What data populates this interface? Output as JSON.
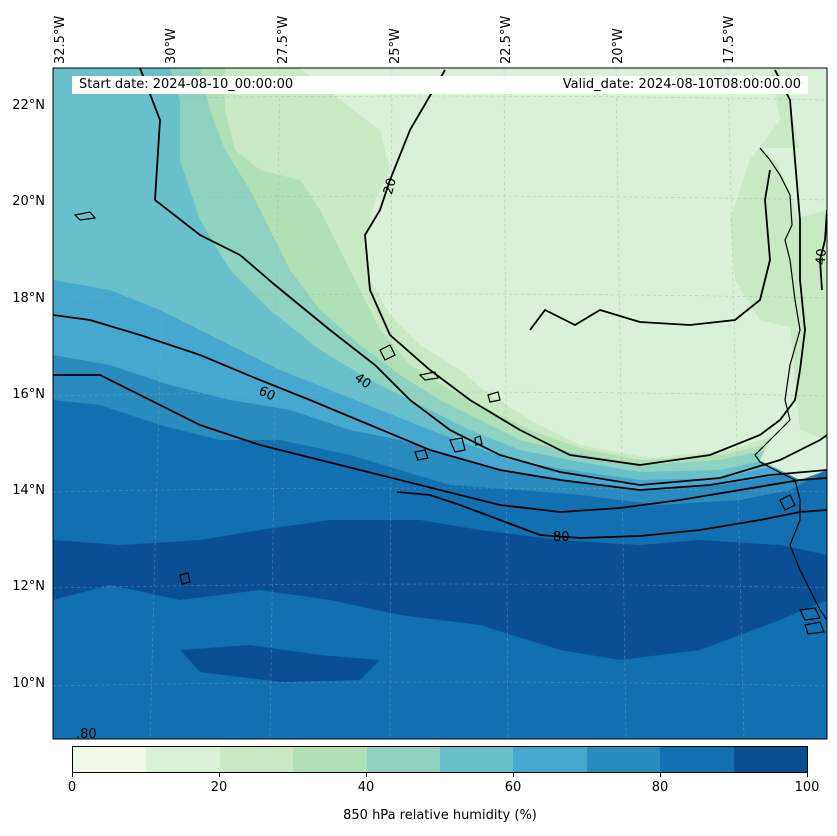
{
  "map": {
    "start_date": "Start date: 2024-08-10_00:00:00",
    "valid_date": "Valid_date: 2024-08-10T08:00:00.00",
    "lon_labels": [
      "32.5°W",
      "30°W",
      "27.5°W",
      "25°W",
      "22.5°W",
      "20°W",
      "17.5°W"
    ],
    "lat_labels": [
      "22°N",
      "20°N",
      "18°N",
      "16°N",
      "14°N",
      "12°N",
      "10°N"
    ],
    "contour_labels": [
      "20",
      "40",
      "60",
      "40",
      "80",
      ".80"
    ],
    "colorbar": {
      "label": "850 hPa relative humidity (%)",
      "ticks": [
        "0",
        "20",
        "40",
        "60",
        "80",
        "100"
      ],
      "colors": [
        "#f0f9e8",
        "#dbf0d8",
        "#c8e9c3",
        "#b0e0b5",
        "#8ed2c1",
        "#69c0ca",
        "#46a8cf",
        "#2a8bbf",
        "#1270b0",
        "#0a4f93"
      ]
    }
  }
}
